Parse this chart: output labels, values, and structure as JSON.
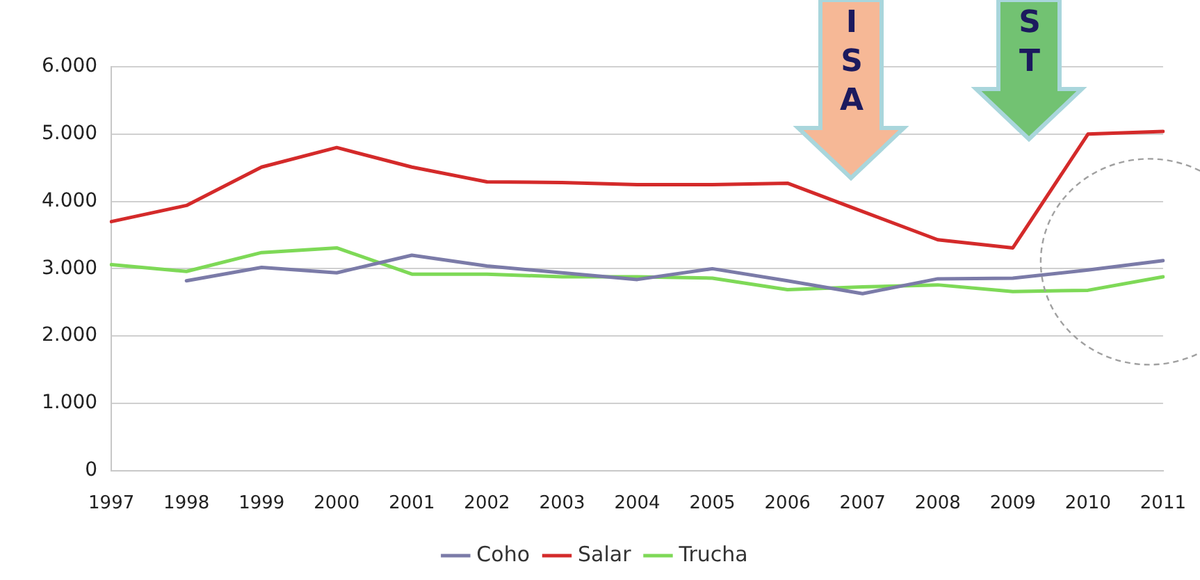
{
  "chart_data": {
    "type": "line",
    "categories": [
      "1997",
      "1998",
      "1999",
      "2000",
      "2001",
      "2002",
      "2003",
      "2004",
      "2005",
      "2006",
      "2007",
      "2008",
      "2009",
      "2010",
      "2011"
    ],
    "series": [
      {
        "name": "Coho",
        "color": "#7b7ba8",
        "values": [
          null,
          2820,
          3020,
          2940,
          3200,
          3040,
          2940,
          2840,
          3000,
          2820,
          2630,
          2850,
          2860,
          2980,
          3120
        ]
      },
      {
        "name": "Salar",
        "color": "#d42a2a",
        "values": [
          3700,
          3940,
          4510,
          4800,
          4510,
          4290,
          4280,
          4250,
          4250,
          4270,
          3850,
          3430,
          3310,
          5000,
          5040
        ]
      },
      {
        "name": "Trucha",
        "color": "#7ed957",
        "values": [
          3060,
          2960,
          3240,
          3310,
          2920,
          2920,
          2880,
          2880,
          2860,
          2690,
          2730,
          2760,
          2660,
          2680,
          2880
        ]
      }
    ],
    "ylim": [
      0,
      6000
    ],
    "yticks": [
      {
        "value": 0,
        "label": "0"
      },
      {
        "value": 1000,
        "label": "1.000"
      },
      {
        "value": 2000,
        "label": "2.000"
      },
      {
        "value": 3000,
        "label": "3.000"
      },
      {
        "value": 4000,
        "label": "4.000"
      },
      {
        "value": 5000,
        "label": "5.000"
      },
      {
        "value": 6000,
        "label": "6.000"
      }
    ],
    "grid": "y",
    "legend": "bottom",
    "marker": "none",
    "line_style": "solid",
    "annotations": [
      "ISA",
      "ST"
    ]
  }
}
